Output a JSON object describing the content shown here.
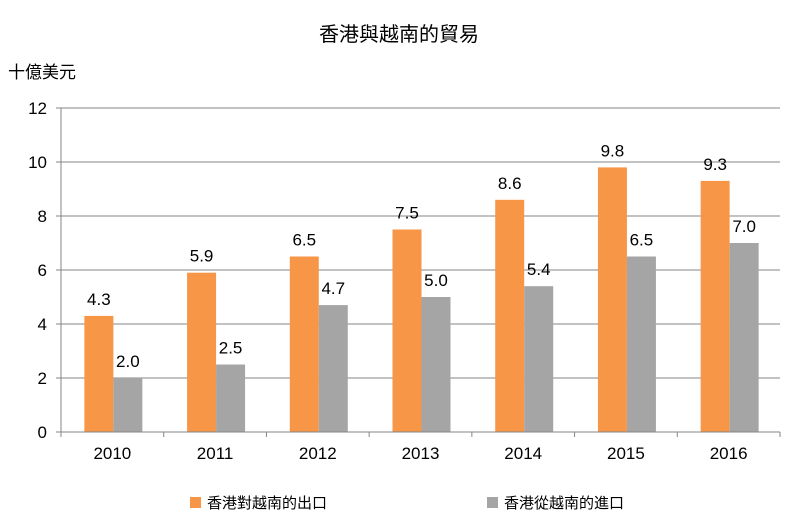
{
  "chart_data": {
    "type": "bar",
    "title": "香港與越南的貿易",
    "ylabel": "十億美元",
    "xlabel": "",
    "categories": [
      "2010",
      "2011",
      "2012",
      "2013",
      "2014",
      "2015",
      "2016"
    ],
    "ylim": [
      0,
      12
    ],
    "yticks": [
      "0",
      "2",
      "4",
      "6",
      "8",
      "10",
      "12"
    ],
    "grid": true,
    "legend_position": "bottom",
    "series": [
      {
        "name": "香港對越南的出口",
        "color": "#F79646",
        "values": [
          4.3,
          5.9,
          6.5,
          7.5,
          8.6,
          9.8,
          9.3
        ],
        "labels": [
          "4.3",
          "5.9",
          "6.5",
          "7.5",
          "8.6",
          "9.8",
          "9.3"
        ]
      },
      {
        "name": "香港從越南的進口",
        "color": "#A5A5A5",
        "values": [
          2.0,
          2.5,
          4.7,
          5.0,
          5.4,
          6.5,
          7.0
        ],
        "labels": [
          "2.0",
          "2.5",
          "4.7",
          "5.0",
          "5.4",
          "6.5",
          "7.0"
        ]
      }
    ]
  }
}
